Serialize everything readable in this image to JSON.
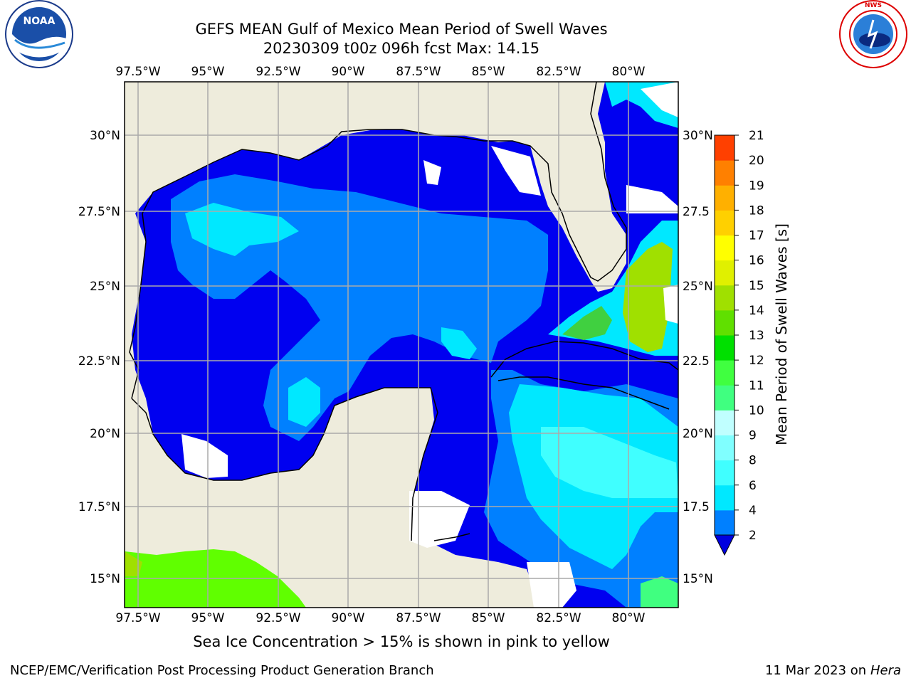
{
  "title_line1": "GEFS MEAN Gulf of Mexico Mean Period of Swell Waves",
  "title_line2": "20230309 t00z 096h fcst   Max: 14.15",
  "lon_labels": [
    "97.5°W",
    "95°W",
    "92.5°W",
    "90°W",
    "87.5°W",
    "85°W",
    "82.5°W",
    "80°W"
  ],
  "lat_labels": [
    "15°N",
    "17.5°N",
    "20°N",
    "22.5°N",
    "25°N",
    "27.5°N",
    "30°N"
  ],
  "lat_labels_right": [
    "15°N",
    "17.5",
    "20°N",
    "22.5",
    "25°N",
    "27.5",
    "30°N"
  ],
  "colorbar": {
    "label": "Mean Period of Swell Waves [s]",
    "ticks": [
      "2",
      "4",
      "6",
      "8",
      "9",
      "10",
      "11",
      "12",
      "13",
      "14",
      "15",
      "16",
      "17",
      "18",
      "19",
      "20",
      "21"
    ],
    "colors": [
      "#0080ff",
      "#00e8ff",
      "#40ffff",
      "#80ffff",
      "#c0ffff",
      "#40ff80",
      "#40ff40",
      "#00e000",
      "#60e000",
      "#a0e000",
      "#e0f000",
      "#ffff00",
      "#ffd000",
      "#ffb000",
      "#ff8000",
      "#ff4000",
      "#ff2000",
      "#ff0000"
    ],
    "under_color": "#0000e0"
  },
  "note": "Sea Ice Concentration > 15% is shown in pink to yellow",
  "footer_left": "NCEP/EMC/Verification Post Processing Product Generation Branch",
  "footer_date": "11 Mar 2023 on",
  "footer_host": "Hera",
  "logos": {
    "left": "NOAA",
    "right": "NATIONAL WEATHER SERVICE"
  }
}
